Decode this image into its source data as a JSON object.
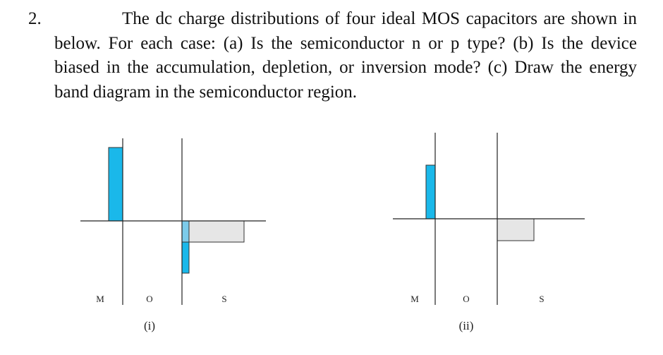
{
  "problem": {
    "number": "2.",
    "text": "The dc charge distributions of four ideal MOS capacitors are shown in below. For each case: (a) Is the semiconductor n or p type? (b) Is the device biased in the accumulation, depletion, or inversion mode? (c) Draw the energy band diagram in the semiconductor region."
  },
  "diagrams": [
    {
      "case_label": "(i)",
      "region_labels": {
        "metal": "M",
        "oxide": "O",
        "semiconductor": "S"
      },
      "colors": {
        "metal_charge": "#1ab8ea",
        "interface_positive": "#7ccbea",
        "interface_negative": "#1ab8ea",
        "depletion_charge": "#e6e6e6"
      }
    },
    {
      "case_label": "(ii)",
      "region_labels": {
        "metal": "M",
        "oxide": "O",
        "semiconductor": "S"
      },
      "colors": {
        "metal_charge": "#1ab8ea",
        "depletion_charge": "#e6e6e6"
      }
    }
  ]
}
